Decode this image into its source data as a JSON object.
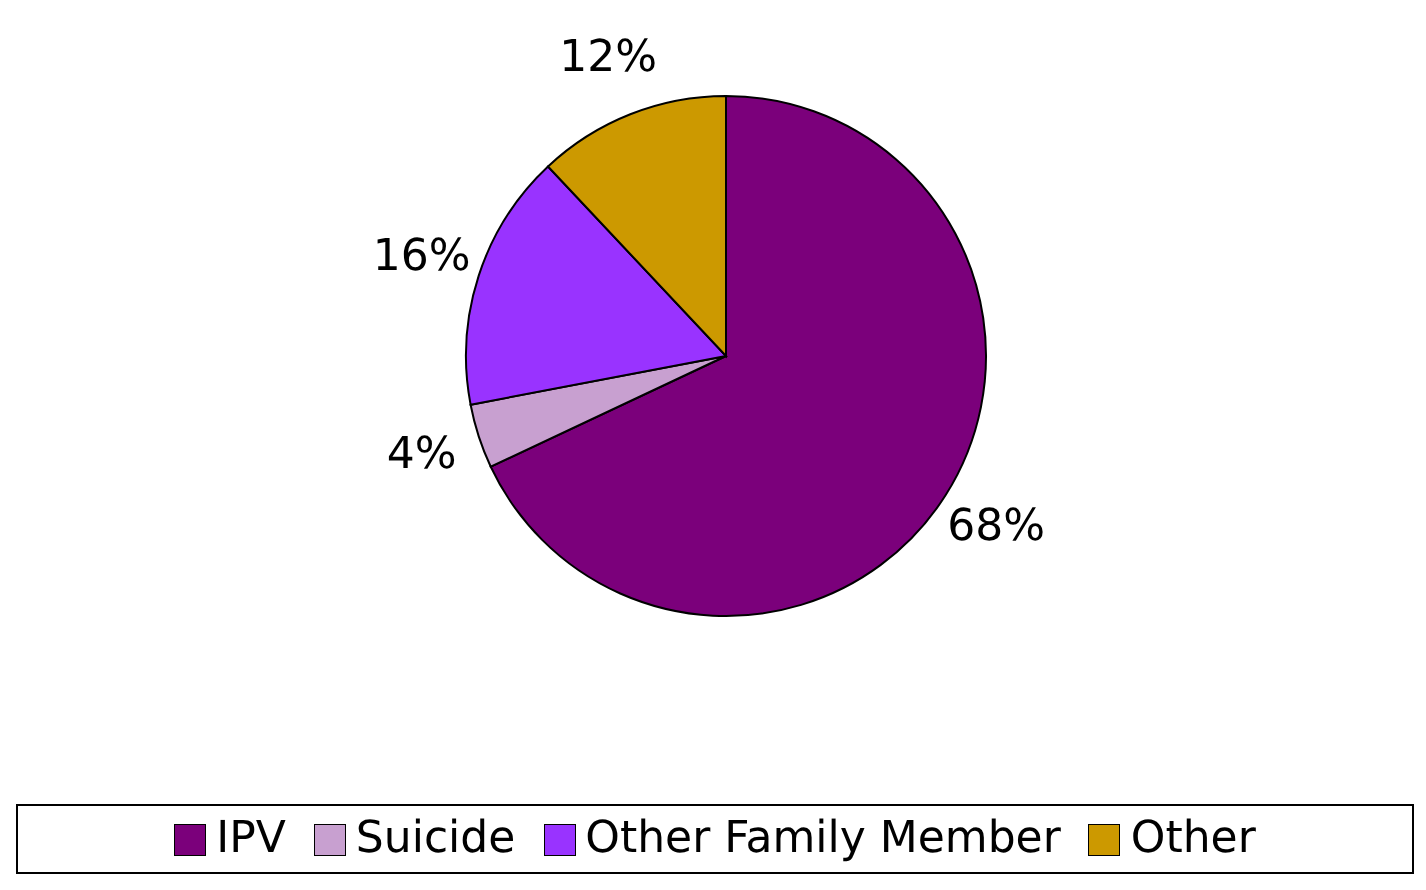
{
  "chart_data": {
    "type": "pie",
    "categories": [
      "IPV",
      "Suicide",
      "Other Family Member",
      "Other"
    ],
    "values": [
      68,
      4,
      16,
      12
    ],
    "colors": [
      "#7b007b",
      "#c8a0d0",
      "#9933ff",
      "#cc9900"
    ],
    "value_labels": [
      "68%",
      "4%",
      "16%",
      "12%"
    ],
    "legend": "bottom"
  }
}
